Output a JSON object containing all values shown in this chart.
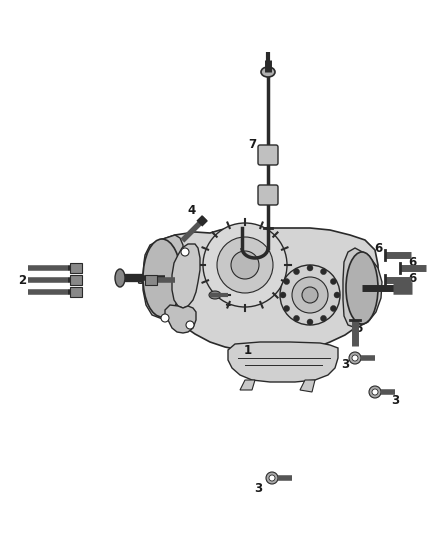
{
  "bg_color": "#ffffff",
  "fig_width": 4.38,
  "fig_height": 5.33,
  "dpi": 100,
  "line_color": "#2a2a2a",
  "text_color": "#1a1a1a",
  "gray_fill": "#c8c8c8",
  "light_gray": "#e8e8e8",
  "mid_gray": "#aaaaaa",
  "dark_gray": "#555555"
}
